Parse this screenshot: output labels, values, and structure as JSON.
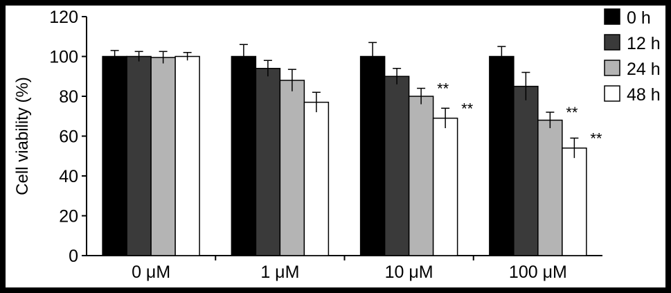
{
  "chart_data": {
    "type": "bar",
    "title": "",
    "xlabel": "",
    "ylabel": "Cell viability (%)",
    "ylim": [
      0,
      120
    ],
    "yticks": [
      0,
      20,
      40,
      60,
      80,
      100,
      120
    ],
    "grid": false,
    "legend_position": "right",
    "categories": [
      "0 μM",
      "1 μM",
      "10 μM",
      "100 μM"
    ],
    "series": [
      {
        "name": "0 h",
        "color": "#000000",
        "values": [
          100,
          100,
          100,
          100
        ],
        "errors": [
          3,
          6,
          7,
          5
        ],
        "annotations": [
          "",
          "",
          "",
          ""
        ]
      },
      {
        "name": "12 h",
        "color": "#3a3a3a",
        "values": [
          100,
          94,
          90,
          85
        ],
        "errors": [
          2.5,
          4,
          4,
          7
        ],
        "annotations": [
          "",
          "",
          "",
          ""
        ]
      },
      {
        "name": "24 h",
        "color": "#b4b4b4",
        "values": [
          99.5,
          88,
          80,
          68
        ],
        "errors": [
          3,
          5.5,
          4,
          4
        ],
        "annotations": [
          "",
          "",
          "**",
          "**"
        ]
      },
      {
        "name": "48 h",
        "color": "#ffffff",
        "values": [
          100,
          77,
          69,
          54
        ],
        "errors": [
          2,
          5,
          5,
          5
        ],
        "annotations": [
          "",
          "",
          "**",
          "**"
        ]
      }
    ]
  }
}
